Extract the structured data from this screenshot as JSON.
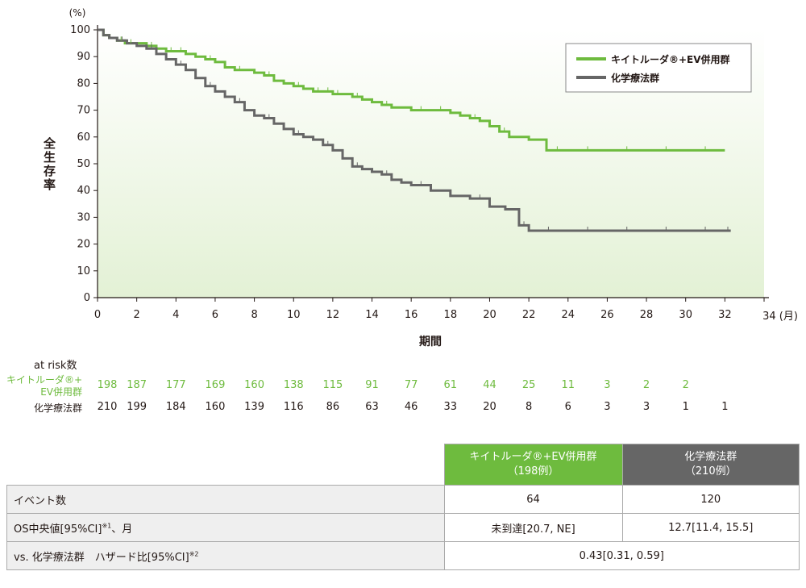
{
  "colors": {
    "pembro_ev": "#6ebb3e",
    "chemo": "#666666",
    "plot_bg_top": "#ffffff",
    "plot_bg_bottom": "#e3f1d5"
  },
  "chart_data": {
    "type": "line",
    "step": true,
    "y_unit": "(%)",
    "x_unit": "34 (月)",
    "ylabel": "全生存率",
    "xlabel": "期間",
    "xlim": [
      0,
      34
    ],
    "ylim": [
      0,
      100
    ],
    "xticks": [
      0,
      2,
      4,
      6,
      8,
      10,
      12,
      14,
      16,
      18,
      20,
      22,
      24,
      26,
      28,
      30,
      32
    ],
    "yticks": [
      0,
      10,
      20,
      30,
      40,
      50,
      60,
      70,
      80,
      90,
      100
    ],
    "legend_position": "top-right",
    "series": [
      {
        "name": "キイトルーダ®+EV併用群",
        "color": "#6ebb3e",
        "x": [
          0,
          0.3,
          0.6,
          1.0,
          1.4,
          2.0,
          2.5,
          3.0,
          3.5,
          4.0,
          4.5,
          5.0,
          5.5,
          6.0,
          6.5,
          7.0,
          7.5,
          8.0,
          8.5,
          9.0,
          9.5,
          10.0,
          10.5,
          11.0,
          11.5,
          12.0,
          12.5,
          13.0,
          13.5,
          14.0,
          14.5,
          15.0,
          16.0,
          17.0,
          18.0,
          18.5,
          19.0,
          19.5,
          20.0,
          20.5,
          21.0,
          22.0,
          22.9,
          24.0,
          26.0,
          28.0,
          30.0,
          32.0
        ],
        "y": [
          100,
          98,
          97,
          96,
          95,
          95,
          94,
          93,
          92,
          92,
          91,
          90,
          89,
          88,
          86,
          85,
          85,
          84,
          83,
          81,
          80,
          79,
          78,
          77,
          77,
          76,
          76,
          75,
          74,
          73,
          72,
          71,
          70,
          70,
          69,
          68,
          67,
          66,
          64,
          62,
          60,
          59,
          55,
          55,
          55,
          55,
          55,
          55
        ]
      },
      {
        "name": "化学療法群",
        "color": "#666666",
        "x": [
          0,
          0.3,
          0.6,
          1.0,
          1.5,
          2.0,
          2.5,
          3.0,
          3.5,
          4.0,
          4.5,
          5.0,
          5.5,
          6.0,
          6.5,
          7.0,
          7.5,
          8.0,
          8.5,
          9.0,
          9.5,
          10.0,
          10.5,
          11.0,
          11.5,
          12.0,
          12.5,
          13.0,
          13.5,
          14.0,
          14.5,
          15.0,
          15.5,
          16.0,
          17.0,
          18.0,
          19.0,
          20.0,
          20.8,
          21.5,
          22.0,
          24.0,
          26.0,
          28.0,
          30.0,
          32.0,
          32.3
        ],
        "y": [
          100,
          98,
          97,
          96,
          95,
          94,
          93,
          91,
          89,
          87,
          85,
          82,
          79,
          77,
          75,
          73,
          70,
          68,
          67,
          65,
          63,
          61,
          60,
          59,
          57,
          55,
          52,
          49,
          48,
          47,
          46,
          44,
          43,
          42,
          40,
          38,
          37,
          34,
          33,
          27,
          25,
          25,
          25,
          25,
          25,
          25,
          25
        ]
      }
    ],
    "risk_table": {
      "title": "at risk数",
      "times": [
        0,
        2,
        4,
        6,
        8,
        10,
        12,
        14,
        16,
        18,
        20,
        22,
        24,
        26,
        28,
        30,
        32
      ],
      "rows": [
        {
          "label_line1": "キイトルーダ®+",
          "label_line2": "EV併用群",
          "values": [
            "198",
            "187",
            "177",
            "169",
            "160",
            "138",
            "115",
            "91",
            "77",
            "61",
            "44",
            "25",
            "11",
            "3",
            "2",
            "2",
            ""
          ]
        },
        {
          "label_line1": "化学療法群",
          "label_line2": "",
          "values": [
            "210",
            "199",
            "184",
            "160",
            "139",
            "116",
            "86",
            "63",
            "46",
            "33",
            "20",
            "8",
            "6",
            "3",
            "3",
            "1",
            "1"
          ]
        }
      ]
    }
  },
  "table": {
    "header_green_line1": "キイトルーダ®+EV併用群",
    "header_green_line2": "（198例）",
    "header_gray_line1": "化学療法群",
    "header_gray_line2": "（210例）",
    "rows": [
      {
        "label": "イベント数",
        "sup": "",
        "label_suffix": "",
        "green": "64",
        "gray": "120"
      },
      {
        "label": "OS中央値[95%CI]",
        "sup": "※1",
        "label_suffix": "、月",
        "green": "未到達[20.7, NE]",
        "gray": "12.7[11.4, 15.5]"
      },
      {
        "label": "vs. 化学療法群　ハザード比[95%CI]",
        "sup": "※2",
        "label_suffix": "",
        "merged": "0.43[0.31, 0.59]"
      }
    ]
  }
}
